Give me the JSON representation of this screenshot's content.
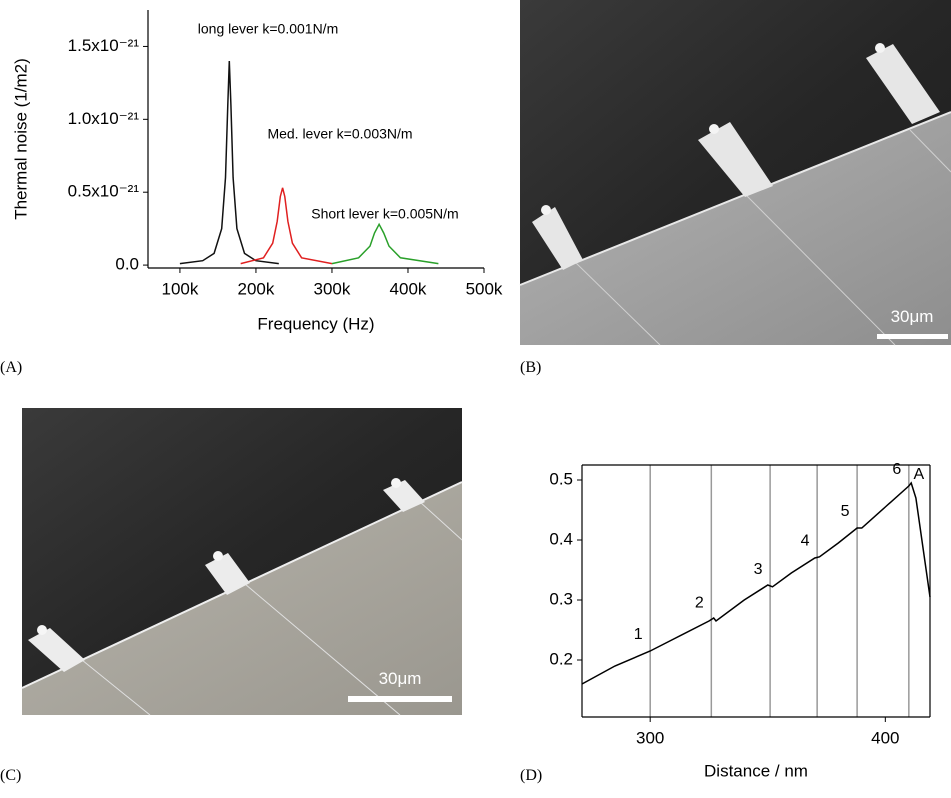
{
  "chart_data": [
    {
      "type": "line",
      "xlabel": "Frequency (Hz)",
      "ylabel": "Thermal noise (1/m2)",
      "xlim": [
        58000,
        500000
      ],
      "ylim": [
        -2e-23,
        1.75e-21
      ],
      "xticks": [
        {
          "value": 100000,
          "label": "100k"
        },
        {
          "value": 200000,
          "label": "200k"
        },
        {
          "value": 300000,
          "label": "300k"
        },
        {
          "value": 400000,
          "label": "400k"
        },
        {
          "value": 500000,
          "label": "500k"
        }
      ],
      "yticks": [
        {
          "value": 0,
          "label": "0.0"
        },
        {
          "value": 5e-22,
          "label": "0.5x10⁻²¹"
        },
        {
          "value": 1e-21,
          "label": "1.0x10⁻²¹"
        },
        {
          "value": 1.5e-21,
          "label": "1.5x10⁻²¹"
        }
      ],
      "series": [
        {
          "name": "long lever k=0.001N/m",
          "color": "#111111",
          "x": [
            100000,
            130000,
            145000,
            155000,
            160000,
            163000,
            165000,
            167000,
            170000,
            175000,
            185000,
            200000,
            230000
          ],
          "values": [
            1e-23,
            3e-23,
            8e-23,
            2.5e-22,
            6e-22,
            1.1e-21,
            1.4e-21,
            1.1e-21,
            6e-22,
            2.5e-22,
            8e-23,
            3e-23,
            1e-23
          ]
        },
        {
          "name": "Med. lever k=0.003N/m",
          "color": "#e02020",
          "x": [
            180000,
            210000,
            222000,
            228000,
            232000,
            235000,
            238000,
            242000,
            248000,
            260000,
            300000
          ],
          "values": [
            1e-23,
            5e-23,
            1.5e-22,
            3e-22,
            4.7e-22,
            5.3e-22,
            4.7e-22,
            3e-22,
            1.5e-22,
            5e-23,
            1e-23
          ]
        },
        {
          "name": "Short lever k=0.005N/m",
          "color": "#2aa02a",
          "x": [
            300000,
            335000,
            350000,
            356000,
            362000,
            368000,
            375000,
            390000,
            440000
          ],
          "values": [
            1e-23,
            5e-23,
            1.3e-22,
            2.2e-22,
            2.8e-22,
            2.2e-22,
            1.3e-22,
            5e-23,
            1e-23
          ]
        }
      ]
    },
    {
      "type": "line",
      "xlabel": "Distance / nm",
      "xlim": [
        271,
        419
      ],
      "ylim": [
        0.105,
        0.525
      ],
      "xticks": [
        300,
        400
      ],
      "yticks": [
        0.2,
        0.3,
        0.4,
        0.5
      ],
      "series": [
        {
          "color": "#000000",
          "x": [
            271,
            285,
            300,
            310,
            325,
            327,
            328,
            340,
            350,
            352,
            360,
            370,
            372,
            380,
            388,
            390,
            400,
            410,
            411,
            413,
            419
          ],
          "values": [
            0.16,
            0.19,
            0.215,
            0.235,
            0.265,
            0.27,
            0.265,
            0.3,
            0.325,
            0.322,
            0.345,
            0.37,
            0.372,
            0.395,
            0.42,
            0.42,
            0.455,
            0.49,
            0.495,
            0.47,
            0.305
          ]
        }
      ],
      "events": [
        {
          "x": 300,
          "label": "1"
        },
        {
          "x": 326,
          "label": "2"
        },
        {
          "x": 351,
          "label": "3"
        },
        {
          "x": 371,
          "label": "4"
        },
        {
          "x": 388,
          "label": "5"
        },
        {
          "x": 410,
          "label": "6"
        }
      ],
      "annotations": [
        "A"
      ]
    }
  ],
  "panel_labels": [
    "(A)",
    "(B)",
    "(C)",
    "(D)"
  ],
  "images": [
    {
      "scale_label": "30μm"
    },
    {
      "scale_label": "30μm"
    }
  ]
}
